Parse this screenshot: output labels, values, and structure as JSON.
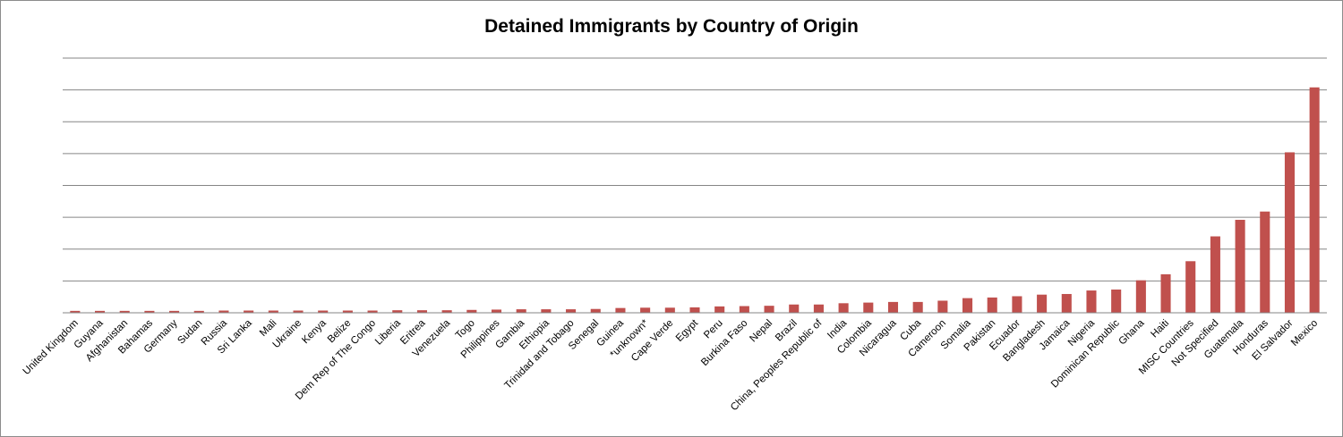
{
  "chart_data": {
    "type": "bar",
    "title": "Detained Immigrants by Country of Origin",
    "xlabel": "",
    "ylabel": "",
    "ylim": [
      0,
      800
    ],
    "grid": true,
    "legend": "none",
    "bar_color": "#c0504d",
    "categories": [
      "United Kingdom",
      "Guyana",
      "Afghanistan",
      "Bahamas",
      "Germany",
      "Sudan",
      "Russia",
      "Sri Lanka",
      "Mali",
      "Ukraine",
      "Kenya",
      "Belize",
      "Dem Rep of The Congo",
      "Liberia",
      "Eritrea",
      "Venezuela",
      "Togo",
      "Philippines",
      "Gambia",
      "Ethiopia",
      "Trinidad and Tobago",
      "Senegal",
      "Guinea",
      "*unknown*",
      "Cape Verde",
      "Egypt",
      "Peru",
      "Burkina Faso",
      "Nepal",
      "Brazil",
      "China, Peoples Republic of",
      "India",
      "Colombia",
      "Nicaragua",
      "Cuba",
      "Cameroon",
      "Somalia",
      "Pakistan",
      "Ecuador",
      "Bangladesh",
      "Jamaica",
      "Nigeria",
      "Dominican Republic",
      "Ghana",
      "Haiti",
      "MISC Countries",
      "Not Specified",
      "Guatemala",
      "Honduras",
      "El Salvador",
      "Mexico"
    ],
    "values": [
      6,
      6,
      6,
      6,
      6,
      6,
      7,
      7,
      7,
      7,
      7,
      7,
      7,
      8,
      8,
      8,
      9,
      10,
      11,
      11,
      11,
      12,
      15,
      16,
      16,
      17,
      20,
      21,
      22,
      26,
      26,
      30,
      32,
      34,
      34,
      38,
      46,
      48,
      52,
      57,
      59,
      70,
      73,
      102,
      121,
      162,
      240,
      292,
      318,
      504,
      708
    ]
  }
}
